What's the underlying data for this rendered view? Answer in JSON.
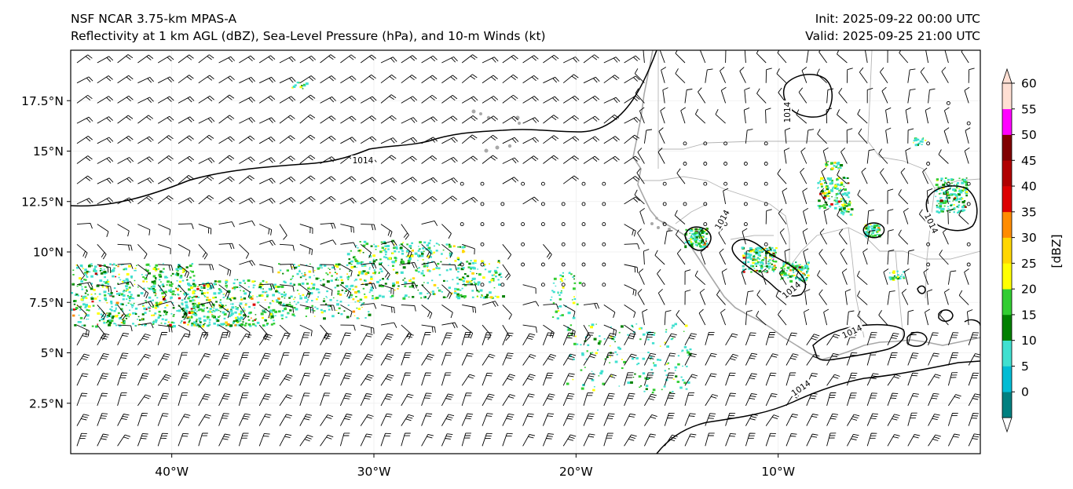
{
  "header": {
    "model": "NSF NCAR 3.75-km MPAS-A",
    "product": "Reflectivity at 1 km AGL (dBZ), Sea-Level Pressure (hPa), and 10-m Winds (kt)",
    "init": "Init: 2025-09-22 00:00 UTC",
    "valid": "Valid: 2025-09-25 21:00 UTC"
  },
  "map": {
    "lon_range": [
      -45,
      0
    ],
    "lat_range": [
      0,
      20
    ],
    "lat_ticks": [
      {
        "value": 17.5,
        "label": "17.5°N"
      },
      {
        "value": 15,
        "label": "15°N"
      },
      {
        "value": 12.5,
        "label": "12.5°N"
      },
      {
        "value": 10,
        "label": "10°N"
      },
      {
        "value": 7.5,
        "label": "7.5°N"
      },
      {
        "value": 5,
        "label": "5°N"
      },
      {
        "value": 2.5,
        "label": "2.5°N"
      }
    ],
    "lon_ticks": [
      {
        "value": -40,
        "label": "40°W"
      },
      {
        "value": -30,
        "label": "30°W"
      },
      {
        "value": -20,
        "label": "20°W"
      },
      {
        "value": -10,
        "label": "10°W"
      }
    ],
    "isobar_label": "1014",
    "colors": {
      "coast": "#a8a8a8",
      "border": "#b4b4b4",
      "isobar": "#000000",
      "barb": "#000000"
    }
  },
  "colorbar": {
    "label": "[dBZ]",
    "ticks": [
      "0",
      "5",
      "10",
      "15",
      "20",
      "25",
      "30",
      "35",
      "40",
      "45",
      "50",
      "55",
      "60"
    ],
    "colors": [
      "#008080",
      "#00bcd4",
      "#40e0d0",
      "#008000",
      "#32cd32",
      "#ffff00",
      "#ffd700",
      "#ff8c00",
      "#dd0000",
      "#b00000",
      "#800000",
      "#ff00ff",
      "#ffdfd3"
    ]
  }
}
